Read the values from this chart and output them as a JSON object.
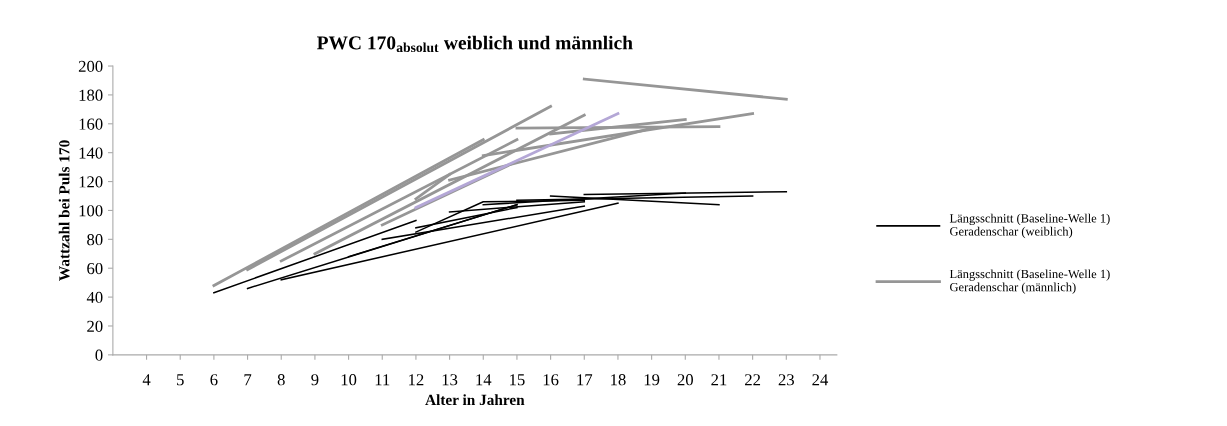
{
  "chart_data": {
    "type": "line",
    "title": "PWC 170$_{absolut}$ weiblich und männlich",
    "xlabel": "Alter in Jahren",
    "ylabel": "Wattzahl bei Puls 170",
    "xlim": [
      3,
      24.5
    ],
    "xticks": [
      4,
      5,
      6,
      7,
      8,
      9,
      10,
      11,
      12,
      13,
      14,
      15,
      16,
      17,
      18,
      19,
      20,
      21,
      22,
      23,
      24
    ],
    "ylim": [
      0,
      200
    ],
    "yticks": [
      0,
      20,
      40,
      60,
      80,
      100,
      120,
      140,
      160,
      180,
      200
    ],
    "grid": false,
    "legend": "right",
    "marker": "none",
    "line_style": "solid",
    "series": [
      {
        "name": "Längsschnitt (Baseline-Welle 1)\nGeradenschar (weiblich)",
        "color": "#000000",
        "x": [
          6,
          12
        ],
        "values": [
          43,
          93
        ]
      },
      {
        "color": "#000000",
        "x": [
          7,
          15
        ],
        "values": [
          46,
          104
        ]
      },
      {
        "color": "#000000",
        "x": [
          8,
          18
        ],
        "values": [
          52,
          105
        ]
      },
      {
        "color": "#000000",
        "x": [
          10,
          15
        ],
        "values": [
          68,
          104
        ]
      },
      {
        "color": "#000000",
        "x": [
          12,
          14,
          17
        ],
        "values": [
          85,
          106,
          107
        ]
      },
      {
        "color": "#000000",
        "x": [
          13,
          17
        ],
        "values": [
          99,
          106
        ]
      },
      {
        "color": "#000000",
        "x": [
          12,
          15
        ],
        "values": [
          88,
          102
        ]
      },
      {
        "color": "#000000",
        "x": [
          16,
          21
        ],
        "values": [
          110,
          104
        ]
      },
      {
        "color": "#000000",
        "x": [
          15,
          22
        ],
        "values": [
          107,
          110
        ]
      },
      {
        "color": "#000000",
        "x": [
          17,
          23
        ],
        "values": [
          111,
          113
        ]
      },
      {
        "color": "#000000",
        "x": [
          14,
          20
        ],
        "values": [
          104,
          112
        ]
      },
      {
        "color": "#000000",
        "x": [
          11,
          17
        ],
        "values": [
          80,
          103
        ]
      },
      {
        "name": "Längsschnitt (Baseline-Welle 1)\nGeradenschar (männlich)",
        "color": "#969696",
        "x": [
          6,
          14
        ],
        "values": [
          48,
          149
        ]
      },
      {
        "color": "#969696",
        "x": [
          7,
          16
        ],
        "values": [
          59,
          172
        ]
      },
      {
        "color": "#969696",
        "x": [
          8,
          15
        ],
        "values": [
          65,
          149
        ]
      },
      {
        "color": "#969696",
        "x": [
          9,
          17
        ],
        "values": [
          70,
          166
        ]
      },
      {
        "color": "#969696",
        "x": [
          11,
          15
        ],
        "values": [
          90,
          134
        ]
      },
      {
        "color": "#969696",
        "x": [
          13,
          19
        ],
        "values": [
          121,
          157
        ]
      },
      {
        "color": "#969696",
        "x": [
          14,
          22
        ],
        "values": [
          138,
          167
        ]
      },
      {
        "color": "#969696",
        "x": [
          15,
          21
        ],
        "values": [
          157,
          158
        ]
      },
      {
        "color": "#969696",
        "x": [
          16,
          20
        ],
        "values": [
          153,
          163
        ]
      },
      {
        "color": "#969696",
        "x": [
          17,
          23
        ],
        "values": [
          191,
          177
        ]
      },
      {
        "color": "#969696",
        "x": [
          12,
          13
        ],
        "values": [
          108,
          125
        ]
      },
      {
        "color": "#b4a7d6",
        "x": [
          12,
          18
        ],
        "values": [
          102,
          167
        ]
      }
    ]
  }
}
